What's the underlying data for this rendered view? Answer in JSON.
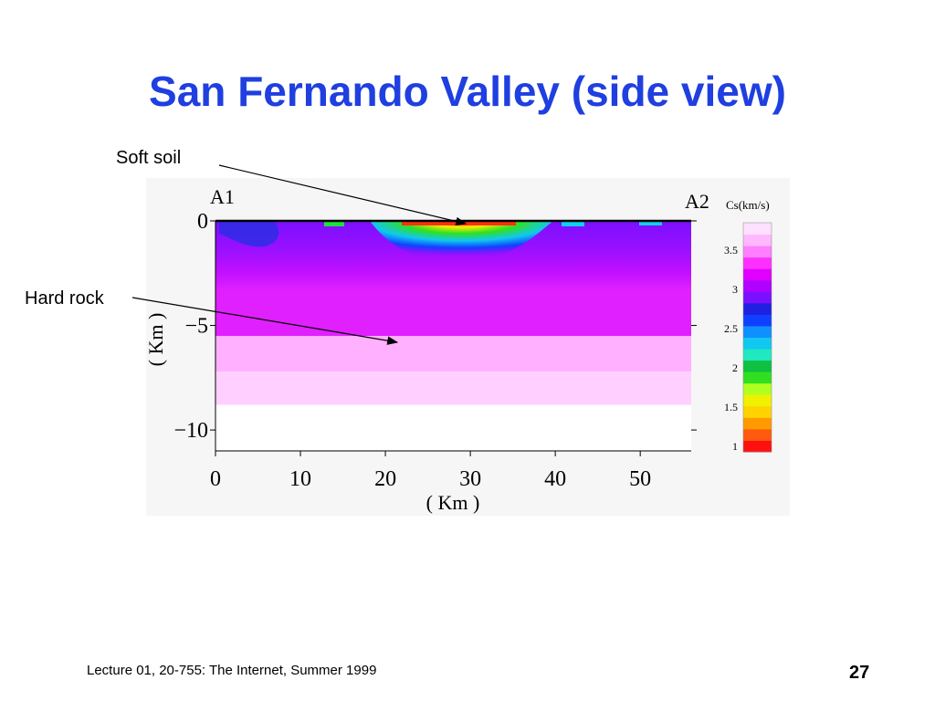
{
  "slide": {
    "title": "San Fernando Valley (side view)",
    "footer": "Lecture 01, 20-755: The Internet, Summer 1999",
    "page_number": "27"
  },
  "annotations": {
    "soft_soil": "Soft soil",
    "hard_rock": "Hard rock"
  },
  "chart_data": {
    "type": "heatmap",
    "title": "",
    "endpoint_left": "A1",
    "endpoint_right": "A2",
    "xlabel": "( Km )",
    "ylabel": "( Km )",
    "xlim": [
      0,
      56
    ],
    "ylim": [
      -11,
      0
    ],
    "x_ticks": [
      0,
      10,
      20,
      30,
      40,
      50
    ],
    "y_ticks": [
      0,
      -5,
      -10
    ],
    "y_tick_labels": [
      "0",
      "−5",
      "−10"
    ],
    "colorbar": {
      "label": "Cs(km/s)",
      "ticks": [
        1,
        1.5,
        2,
        2.5,
        3,
        3.5
      ],
      "colors": [
        "#ff1010",
        "#ff5a10",
        "#ff9a00",
        "#ffd200",
        "#f0f000",
        "#b0ff20",
        "#30e020",
        "#10c040",
        "#20e8c0",
        "#10c8f0",
        "#1090ff",
        "#1040ff",
        "#2020e0",
        "#7a10ff",
        "#b000ff",
        "#e000ff",
        "#ff30ff",
        "#ff80ff",
        "#ffb8ff",
        "#ffe0ff"
      ]
    },
    "layers": [
      {
        "depth_top": 0,
        "depth_bottom": -5.5,
        "color": "#9a10ff"
      },
      {
        "depth_top": -5.5,
        "depth_bottom": -7.2,
        "color": "#ffb0ff"
      },
      {
        "depth_top": -7.2,
        "depth_bottom": -8.8,
        "color": "#ffd0ff"
      },
      {
        "depth_top": -8.8,
        "depth_bottom": -11,
        "color": "#ffffff"
      }
    ]
  }
}
